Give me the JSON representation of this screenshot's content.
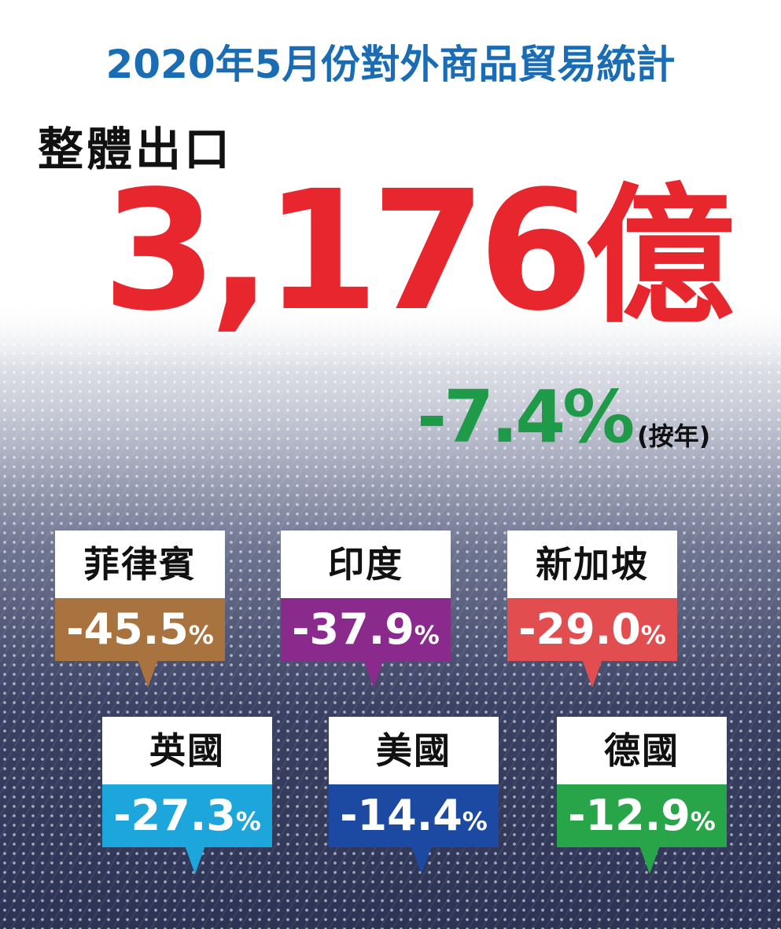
{
  "header": {
    "title": "2020年5月份對外商品貿易統計",
    "subtitle": "整體出口"
  },
  "headline": {
    "value": "3,176",
    "unit": "億",
    "change": "-7.4%",
    "change_note": "(按年)"
  },
  "cards": [
    {
      "country": "菲律賓",
      "value": "-45.5",
      "unit": "%",
      "color": "#a8733f"
    },
    {
      "country": "印度",
      "value": "-37.9",
      "unit": "%",
      "color": "#8a2a8c"
    },
    {
      "country": "新加坡",
      "value": "-29.0",
      "unit": "%",
      "color": "#e24d4f"
    },
    {
      "country": "英國",
      "value": "-27.3",
      "unit": "%",
      "color": "#1ca6dc"
    },
    {
      "country": "美國",
      "value": "-14.4",
      "unit": "%",
      "color": "#1c4aa3"
    },
    {
      "country": "德國",
      "value": "-12.9",
      "unit": "%",
      "color": "#28a548"
    }
  ]
}
